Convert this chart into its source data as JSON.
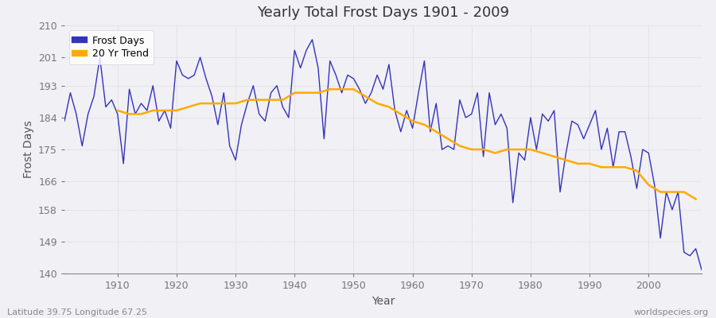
{
  "title": "Yearly Total Frost Days 1901 - 2009",
  "xlabel": "Year",
  "ylabel": "Frost Days",
  "subtitle": "Latitude 39.75 Longitude 67.25",
  "watermark": "worldspecies.org",
  "legend_labels": [
    "Frost Days",
    "20 Yr Trend"
  ],
  "line_color": "#3333bb",
  "trend_color": "#ffaa00",
  "bg_color": "#f0f0f5",
  "ylim": [
    140,
    210
  ],
  "xlim": [
    1901,
    2009
  ],
  "yticks": [
    140,
    149,
    158,
    166,
    175,
    184,
    193,
    201,
    210
  ],
  "xticks": [
    1910,
    1920,
    1930,
    1940,
    1950,
    1960,
    1970,
    1980,
    1990,
    2000
  ],
  "years": [
    1901,
    1902,
    1903,
    1904,
    1905,
    1906,
    1907,
    1908,
    1909,
    1910,
    1911,
    1912,
    1913,
    1914,
    1915,
    1916,
    1917,
    1918,
    1919,
    1920,
    1921,
    1922,
    1923,
    1924,
    1925,
    1926,
    1927,
    1928,
    1929,
    1930,
    1931,
    1932,
    1933,
    1934,
    1935,
    1936,
    1937,
    1938,
    1939,
    1940,
    1941,
    1942,
    1943,
    1944,
    1945,
    1946,
    1947,
    1948,
    1949,
    1950,
    1951,
    1952,
    1953,
    1954,
    1955,
    1956,
    1957,
    1958,
    1959,
    1960,
    1961,
    1962,
    1963,
    1964,
    1965,
    1966,
    1967,
    1968,
    1969,
    1970,
    1971,
    1972,
    1973,
    1974,
    1975,
    1976,
    1977,
    1978,
    1979,
    1980,
    1981,
    1982,
    1983,
    1984,
    1985,
    1986,
    1987,
    1988,
    1989,
    1990,
    1991,
    1992,
    1993,
    1994,
    1995,
    1996,
    1997,
    1998,
    1999,
    2000,
    2001,
    2002,
    2003,
    2004,
    2005,
    2006,
    2007,
    2008,
    2009
  ],
  "frost_days": [
    183,
    191,
    185,
    176,
    185,
    190,
    201,
    187,
    189,
    185,
    171,
    192,
    185,
    188,
    186,
    193,
    183,
    186,
    181,
    200,
    196,
    195,
    196,
    201,
    195,
    190,
    182,
    191,
    176,
    172,
    182,
    188,
    193,
    185,
    183,
    191,
    193,
    187,
    184,
    203,
    198,
    203,
    206,
    198,
    178,
    200,
    196,
    191,
    196,
    195,
    192,
    188,
    191,
    196,
    192,
    199,
    186,
    180,
    186,
    181,
    191,
    200,
    180,
    188,
    175,
    176,
    175,
    189,
    184,
    185,
    191,
    173,
    191,
    182,
    185,
    181,
    160,
    174,
    172,
    184,
    175,
    185,
    183,
    186,
    163,
    174,
    183,
    182,
    178,
    182,
    186,
    175,
    181,
    170,
    180,
    180,
    173,
    164,
    175,
    174,
    165,
    150,
    163,
    158,
    163,
    146,
    145,
    147,
    141
  ],
  "trend_years": [
    1910,
    1912,
    1914,
    1916,
    1918,
    1920,
    1922,
    1924,
    1926,
    1928,
    1930,
    1932,
    1934,
    1936,
    1938,
    1940,
    1942,
    1944,
    1946,
    1948,
    1950,
    1952,
    1954,
    1956,
    1958,
    1960,
    1962,
    1964,
    1966,
    1968,
    1970,
    1972,
    1974,
    1976,
    1978,
    1980,
    1982,
    1984,
    1986,
    1988,
    1990,
    1992,
    1994,
    1996,
    1998,
    2000,
    2002,
    2004,
    2006,
    2008
  ],
  "trend_values": [
    186,
    185,
    185,
    186,
    186,
    186,
    187,
    188,
    188,
    188,
    188,
    189,
    189,
    189,
    189,
    191,
    191,
    191,
    192,
    192,
    192,
    190,
    188,
    187,
    185,
    183,
    182,
    180,
    178,
    176,
    175,
    175,
    174,
    175,
    175,
    175,
    174,
    173,
    172,
    171,
    171,
    170,
    170,
    170,
    169,
    165,
    163,
    163,
    163,
    161
  ]
}
